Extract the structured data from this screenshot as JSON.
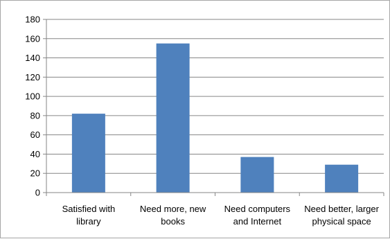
{
  "chart_data": {
    "type": "bar",
    "categories": [
      [
        "Satisfied with",
        "library"
      ],
      [
        "Need more, new",
        "books"
      ],
      [
        "Need computers",
        "and Internet"
      ],
      [
        "Need better, larger",
        "physical space"
      ]
    ],
    "values": [
      82,
      155,
      37,
      29
    ],
    "ylim": [
      0,
      180
    ],
    "yticks": [
      0,
      20,
      40,
      60,
      80,
      100,
      120,
      140,
      160,
      180
    ],
    "grid": true,
    "bar_color": "#4f81bd",
    "grid_color": "#868686",
    "title": "",
    "xlabel": "",
    "ylabel": ""
  }
}
